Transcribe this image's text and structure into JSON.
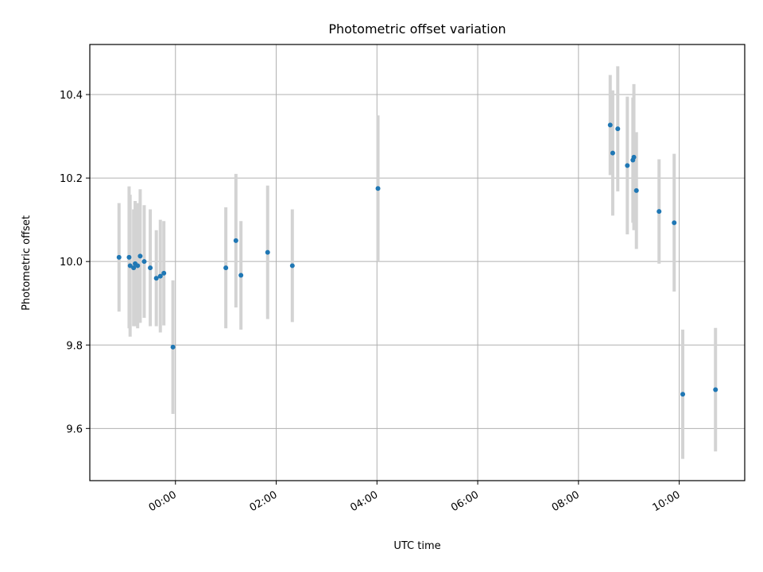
{
  "chart_data": {
    "type": "scatter",
    "title": "Photometric offset variation",
    "xlabel": "UTC time",
    "ylabel": "Photometric offset",
    "x_unit": "hours",
    "xlim": [
      -1.7,
      11.3
    ],
    "ylim": [
      9.475,
      10.52
    ],
    "x_ticks": [
      0,
      2,
      4,
      6,
      8,
      10
    ],
    "x_tick_labels": [
      "00:00",
      "02:00",
      "04:00",
      "06:00",
      "08:00",
      "10:00"
    ],
    "y_ticks": [
      9.6,
      9.8,
      10.0,
      10.2,
      10.4
    ],
    "y_tick_labels": [
      "9.6",
      "9.8",
      "10.0",
      "10.2",
      "10.4"
    ],
    "grid": true,
    "marker_color": "#1f77b4",
    "errorbar_color": "#d3d3d3",
    "points": [
      {
        "x": -1.12,
        "y": 10.01,
        "err": 0.13
      },
      {
        "x": -0.92,
        "y": 10.01,
        "err": 0.17
      },
      {
        "x": -0.9,
        "y": 9.99,
        "err": 0.17
      },
      {
        "x": -0.83,
        "y": 9.985,
        "err": 0.14
      },
      {
        "x": -0.8,
        "y": 9.995,
        "err": 0.15
      },
      {
        "x": -0.75,
        "y": 9.99,
        "err": 0.15
      },
      {
        "x": -0.7,
        "y": 10.013,
        "err": 0.16
      },
      {
        "x": -0.62,
        "y": 10.0,
        "err": 0.135
      },
      {
        "x": -0.5,
        "y": 9.985,
        "err": 0.14
      },
      {
        "x": -0.38,
        "y": 9.96,
        "err": 0.115
      },
      {
        "x": -0.3,
        "y": 9.965,
        "err": 0.135
      },
      {
        "x": -0.23,
        "y": 9.972,
        "err": 0.125
      },
      {
        "x": -0.05,
        "y": 9.795,
        "err": 0.16
      },
      {
        "x": 1.0,
        "y": 9.985,
        "err": 0.145
      },
      {
        "x": 1.2,
        "y": 10.05,
        "err": 0.16
      },
      {
        "x": 1.3,
        "y": 9.967,
        "err": 0.13
      },
      {
        "x": 1.83,
        "y": 10.022,
        "err": 0.16
      },
      {
        "x": 2.32,
        "y": 9.99,
        "err": 0.135
      },
      {
        "x": 4.02,
        "y": 10.175,
        "err": 0.175
      },
      {
        "x": 8.63,
        "y": 10.327,
        "err": 0.12
      },
      {
        "x": 8.68,
        "y": 10.26,
        "err": 0.15
      },
      {
        "x": 8.78,
        "y": 10.318,
        "err": 0.15
      },
      {
        "x": 8.97,
        "y": 10.23,
        "err": 0.165
      },
      {
        "x": 9.08,
        "y": 10.243,
        "err": 0.15
      },
      {
        "x": 9.1,
        "y": 10.25,
        "err": 0.175
      },
      {
        "x": 9.15,
        "y": 10.17,
        "err": 0.14
      },
      {
        "x": 9.6,
        "y": 10.12,
        "err": 0.125
      },
      {
        "x": 9.9,
        "y": 10.093,
        "err": 0.165
      },
      {
        "x": 10.07,
        "y": 9.682,
        "err": 0.155
      },
      {
        "x": 10.72,
        "y": 9.693,
        "err": 0.148
      }
    ]
  }
}
